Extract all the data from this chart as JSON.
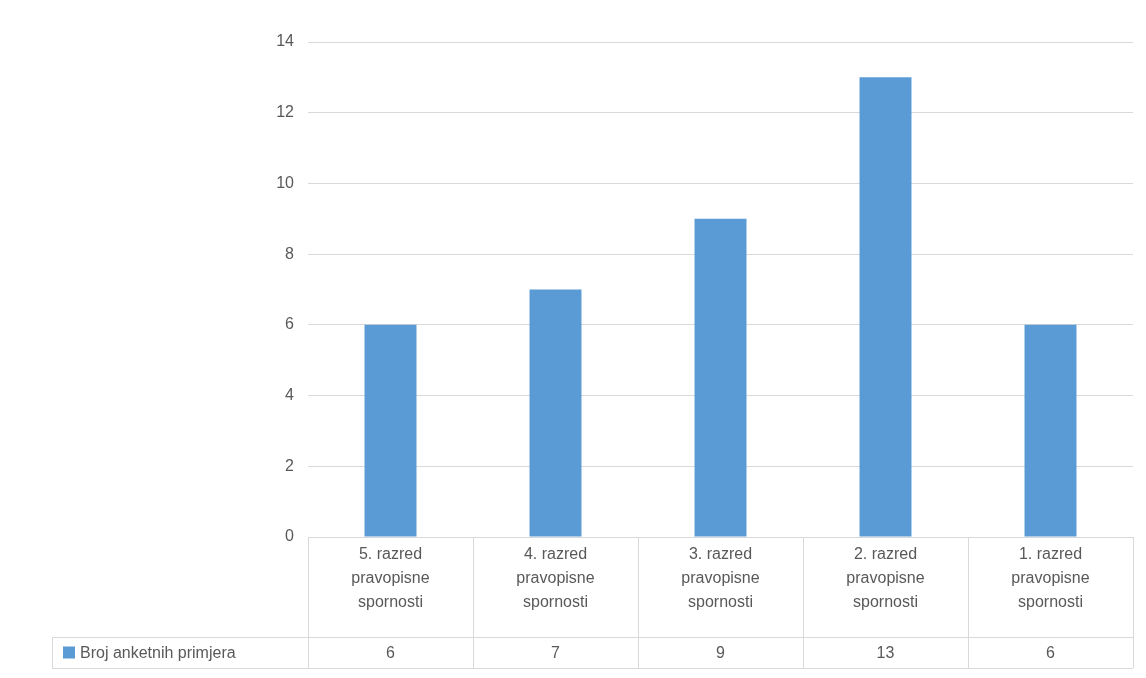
{
  "chart_data": {
    "type": "bar",
    "categories": [
      "5. razred pravopisne spornosti",
      "4. razred pravopisne spornosti",
      "3. razred pravopisne spornosti",
      "2. razred pravopisne spornosti",
      "1. razred pravopisne spornosti"
    ],
    "series": [
      {
        "name": "Broj anketnih primjera",
        "color": "#5b9bd5",
        "values": [
          6,
          7,
          9,
          13,
          6
        ]
      }
    ],
    "ylim": [
      0,
      14
    ],
    "yticks": [
      0,
      2,
      4,
      6,
      8,
      10,
      12,
      14
    ],
    "grid": "y",
    "legend": "bottom",
    "data_labels": true
  }
}
